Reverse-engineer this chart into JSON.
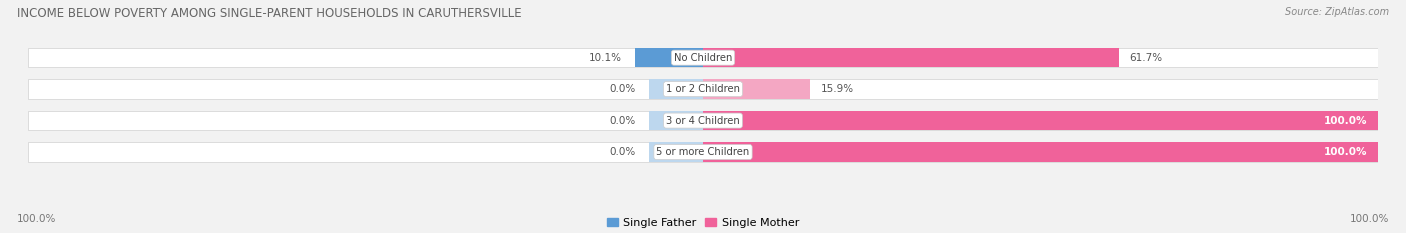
{
  "title": "INCOME BELOW POVERTY AMONG SINGLE-PARENT HOUSEHOLDS IN CARUTHERSVILLE",
  "source": "Source: ZipAtlas.com",
  "categories": [
    "No Children",
    "1 or 2 Children",
    "3 or 4 Children",
    "5 or more Children"
  ],
  "single_father": [
    10.1,
    0.0,
    0.0,
    0.0
  ],
  "single_mother": [
    61.7,
    15.9,
    100.0,
    100.0
  ],
  "father_color_strong": "#5b9bd5",
  "father_color_light": "#bdd7ee",
  "mother_color_strong": "#f0629a",
  "mother_color_light": "#f4a7c3",
  "bg_color": "#f2f2f2",
  "bar_bg_color": "#e8e8e8",
  "legend_father": "Single Father",
  "legend_mother": "Single Mother",
  "x_left_label": "100.0%",
  "x_right_label": "100.0%",
  "max_val": 100.0
}
